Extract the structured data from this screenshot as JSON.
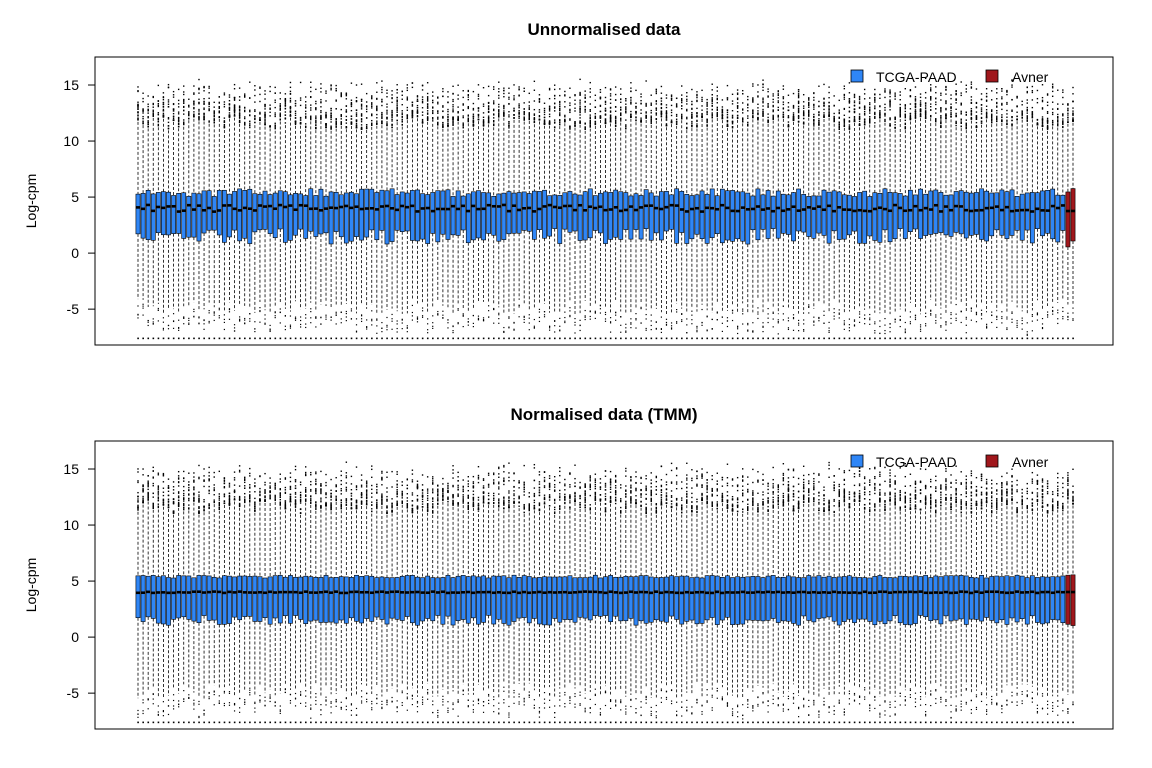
{
  "chart_data": [
    {
      "type": "boxplot",
      "title": "Unnormalised data",
      "xlabel": "",
      "ylabel": "Log-cpm",
      "ylim": [
        -8.2,
        17.5
      ],
      "yticks": [
        -5,
        0,
        5,
        10,
        15
      ],
      "grid": false,
      "legend_placement": "top-right",
      "legend": [
        {
          "label": "TCGA-PAAD",
          "color": "#2F86F6"
        },
        {
          "label": "Avner",
          "color": "#A0171C"
        }
      ],
      "series": [
        {
          "name": "TCGA-PAAD",
          "color": "#2F86F6",
          "n_boxes": 183,
          "typical": {
            "min": -7.6,
            "q1": 1.5,
            "median": 4.0,
            "q3": 5.4,
            "whisker_low": -4.8,
            "whisker_high": 11.5,
            "max": 14.5
          }
        },
        {
          "name": "Avner",
          "color": "#A0171C",
          "n_boxes": 2,
          "typical": {
            "min": -7.6,
            "q1": 1.0,
            "median": 3.8,
            "q3": 5.5,
            "whisker_low": -4.9,
            "whisker_high": 11.6,
            "max": 14.0
          }
        }
      ]
    },
    {
      "type": "boxplot",
      "title": "Normalised data (TMM)",
      "xlabel": "",
      "ylabel": "Log-cpm",
      "ylim": [
        -8.2,
        17.5
      ],
      "yticks": [
        -5,
        0,
        5,
        10,
        15
      ],
      "grid": false,
      "legend_placement": "top-right",
      "legend": [
        {
          "label": "TCGA-PAAD",
          "color": "#2F86F6"
        },
        {
          "label": "Avner",
          "color": "#A0171C"
        }
      ],
      "series": [
        {
          "name": "TCGA-PAAD",
          "color": "#2F86F6",
          "n_boxes": 183,
          "typical": {
            "min": -7.6,
            "q1": 1.5,
            "median": 4.0,
            "q3": 5.4,
            "whisker_low": -4.8,
            "whisker_high": 11.5,
            "max": 14.5
          }
        },
        {
          "name": "Avner",
          "color": "#A0171C",
          "n_boxes": 2,
          "typical": {
            "min": -7.6,
            "q1": 0.8,
            "median": 4.0,
            "q3": 5.5,
            "whisker_low": -4.9,
            "whisker_high": 11.8,
            "max": 14.5
          }
        }
      ]
    }
  ]
}
